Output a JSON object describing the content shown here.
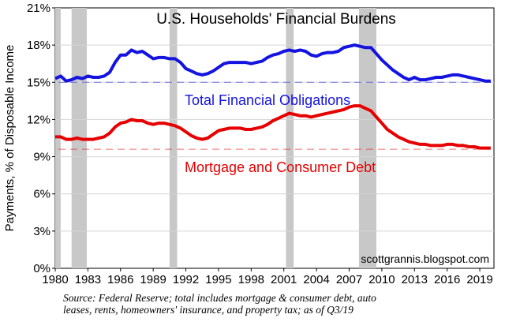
{
  "chart_data": {
    "type": "line",
    "title": "U.S. Households' Financial Burdens",
    "ylabel": "Payments, % of Disposable Income",
    "ylim": [
      0,
      21
    ],
    "xlim": [
      1980,
      2020.3
    ],
    "y_ticks": [
      0,
      3,
      6,
      9,
      12,
      15,
      18,
      21
    ],
    "y_tick_labels": [
      "0%",
      "3%",
      "6%",
      "9%",
      "12%",
      "15%",
      "18%",
      "21%"
    ],
    "x_ticks": [
      1980,
      1983,
      1986,
      1989,
      1992,
      1995,
      1998,
      2001,
      2004,
      2007,
      2010,
      2013,
      2016,
      2019
    ],
    "x_tick_labels": [
      "1980",
      "1983",
      "1986",
      "1989",
      "1992",
      "1995",
      "1998",
      "2001",
      "2004",
      "2007",
      "2010",
      "2013",
      "2016",
      "2019"
    ],
    "recessions": [
      [
        1980.0,
        1980.5
      ],
      [
        1981.5,
        1982.9
      ],
      [
        1990.5,
        1991.2
      ],
      [
        2001.2,
        2001.9
      ],
      [
        2007.9,
        2009.5
      ]
    ],
    "series": [
      {
        "name": "Total Financial Obligations",
        "color": "#1414e0",
        "reference_level": 15.0,
        "points": [
          [
            1980.0,
            15.3
          ],
          [
            1980.5,
            15.5
          ],
          [
            1981.0,
            15.1
          ],
          [
            1981.5,
            15.2
          ],
          [
            1982.0,
            15.4
          ],
          [
            1982.5,
            15.3
          ],
          [
            1983.0,
            15.5
          ],
          [
            1983.5,
            15.4
          ],
          [
            1984.0,
            15.4
          ],
          [
            1984.5,
            15.5
          ],
          [
            1985.0,
            15.8
          ],
          [
            1985.5,
            16.6
          ],
          [
            1986.0,
            17.2
          ],
          [
            1986.5,
            17.2
          ],
          [
            1987.0,
            17.6
          ],
          [
            1987.5,
            17.4
          ],
          [
            1988.0,
            17.5
          ],
          [
            1988.5,
            17.2
          ],
          [
            1989.0,
            16.9
          ],
          [
            1989.5,
            17.0
          ],
          [
            1990.0,
            17.0
          ],
          [
            1990.5,
            16.9
          ],
          [
            1991.0,
            16.9
          ],
          [
            1991.5,
            16.6
          ],
          [
            1992.0,
            16.1
          ],
          [
            1992.5,
            15.9
          ],
          [
            1993.0,
            15.7
          ],
          [
            1993.5,
            15.6
          ],
          [
            1994.0,
            15.7
          ],
          [
            1994.5,
            15.9
          ],
          [
            1995.0,
            16.2
          ],
          [
            1995.5,
            16.5
          ],
          [
            1996.0,
            16.6
          ],
          [
            1996.5,
            16.6
          ],
          [
            1997.0,
            16.6
          ],
          [
            1997.5,
            16.6
          ],
          [
            1998.0,
            16.5
          ],
          [
            1998.5,
            16.6
          ],
          [
            1999.0,
            16.7
          ],
          [
            1999.5,
            17.0
          ],
          [
            2000.0,
            17.2
          ],
          [
            2000.5,
            17.3
          ],
          [
            2001.0,
            17.5
          ],
          [
            2001.5,
            17.6
          ],
          [
            2002.0,
            17.5
          ],
          [
            2002.5,
            17.6
          ],
          [
            2003.0,
            17.5
          ],
          [
            2003.5,
            17.2
          ],
          [
            2004.0,
            17.1
          ],
          [
            2004.5,
            17.3
          ],
          [
            2005.0,
            17.4
          ],
          [
            2005.5,
            17.4
          ],
          [
            2006.0,
            17.5
          ],
          [
            2006.5,
            17.8
          ],
          [
            2007.0,
            17.9
          ],
          [
            2007.5,
            18.0
          ],
          [
            2008.0,
            17.9
          ],
          [
            2008.5,
            17.8
          ],
          [
            2009.0,
            17.8
          ],
          [
            2009.5,
            17.3
          ],
          [
            2010.0,
            16.8
          ],
          [
            2010.5,
            16.4
          ],
          [
            2011.0,
            16.0
          ],
          [
            2011.5,
            15.7
          ],
          [
            2012.0,
            15.4
          ],
          [
            2012.5,
            15.2
          ],
          [
            2013.0,
            15.4
          ],
          [
            2013.5,
            15.2
          ],
          [
            2014.0,
            15.2
          ],
          [
            2014.5,
            15.3
          ],
          [
            2015.0,
            15.4
          ],
          [
            2015.5,
            15.4
          ],
          [
            2016.0,
            15.5
          ],
          [
            2016.5,
            15.6
          ],
          [
            2017.0,
            15.6
          ],
          [
            2017.5,
            15.5
          ],
          [
            2018.0,
            15.4
          ],
          [
            2018.5,
            15.3
          ],
          [
            2019.0,
            15.2
          ],
          [
            2019.5,
            15.1
          ],
          [
            2020.0,
            15.1
          ]
        ]
      },
      {
        "name": "Mortgage and Consumer Debt",
        "color": "#e60000",
        "reference_level": 9.6,
        "points": [
          [
            1980.0,
            10.6
          ],
          [
            1980.5,
            10.6
          ],
          [
            1981.0,
            10.4
          ],
          [
            1981.5,
            10.4
          ],
          [
            1982.0,
            10.5
          ],
          [
            1982.5,
            10.4
          ],
          [
            1983.0,
            10.4
          ],
          [
            1983.5,
            10.4
          ],
          [
            1984.0,
            10.5
          ],
          [
            1984.5,
            10.6
          ],
          [
            1985.0,
            10.9
          ],
          [
            1985.5,
            11.4
          ],
          [
            1986.0,
            11.7
          ],
          [
            1986.5,
            11.8
          ],
          [
            1987.0,
            12.0
          ],
          [
            1987.5,
            11.9
          ],
          [
            1988.0,
            11.9
          ],
          [
            1988.5,
            11.7
          ],
          [
            1989.0,
            11.6
          ],
          [
            1989.5,
            11.7
          ],
          [
            1990.0,
            11.7
          ],
          [
            1990.5,
            11.6
          ],
          [
            1991.0,
            11.5
          ],
          [
            1991.5,
            11.3
          ],
          [
            1992.0,
            11.0
          ],
          [
            1992.5,
            10.7
          ],
          [
            1993.0,
            10.5
          ],
          [
            1993.5,
            10.4
          ],
          [
            1994.0,
            10.5
          ],
          [
            1994.5,
            10.8
          ],
          [
            1995.0,
            11.1
          ],
          [
            1995.5,
            11.2
          ],
          [
            1996.0,
            11.3
          ],
          [
            1996.5,
            11.3
          ],
          [
            1997.0,
            11.3
          ],
          [
            1997.5,
            11.2
          ],
          [
            1998.0,
            11.2
          ],
          [
            1998.5,
            11.3
          ],
          [
            1999.0,
            11.4
          ],
          [
            1999.5,
            11.6
          ],
          [
            2000.0,
            11.9
          ],
          [
            2000.5,
            12.1
          ],
          [
            2001.0,
            12.3
          ],
          [
            2001.5,
            12.5
          ],
          [
            2002.0,
            12.4
          ],
          [
            2002.5,
            12.3
          ],
          [
            2003.0,
            12.3
          ],
          [
            2003.5,
            12.2
          ],
          [
            2004.0,
            12.3
          ],
          [
            2004.5,
            12.4
          ],
          [
            2005.0,
            12.5
          ],
          [
            2005.5,
            12.6
          ],
          [
            2006.0,
            12.7
          ],
          [
            2006.5,
            12.8
          ],
          [
            2007.0,
            13.0
          ],
          [
            2007.5,
            13.1
          ],
          [
            2008.0,
            13.1
          ],
          [
            2008.5,
            12.9
          ],
          [
            2009.0,
            12.7
          ],
          [
            2009.5,
            12.2
          ],
          [
            2010.0,
            11.7
          ],
          [
            2010.5,
            11.2
          ],
          [
            2011.0,
            10.9
          ],
          [
            2011.5,
            10.6
          ],
          [
            2012.0,
            10.4
          ],
          [
            2012.5,
            10.2
          ],
          [
            2013.0,
            10.1
          ],
          [
            2013.5,
            10.0
          ],
          [
            2014.0,
            10.0
          ],
          [
            2014.5,
            9.9
          ],
          [
            2015.0,
            9.9
          ],
          [
            2015.5,
            9.9
          ],
          [
            2016.0,
            10.0
          ],
          [
            2016.5,
            10.0
          ],
          [
            2017.0,
            9.9
          ],
          [
            2017.5,
            9.9
          ],
          [
            2018.0,
            9.8
          ],
          [
            2018.5,
            9.8
          ],
          [
            2019.0,
            9.7
          ],
          [
            2019.5,
            9.7
          ],
          [
            2020.0,
            9.7
          ]
        ]
      }
    ],
    "credit": "scottgrannis.blogspot.com",
    "source_note": "Source: Federal Reserve; total includes mortgage & consumer debt, auto leases, rents, homeowners' insurance, and property tax; as of Q3/19"
  }
}
